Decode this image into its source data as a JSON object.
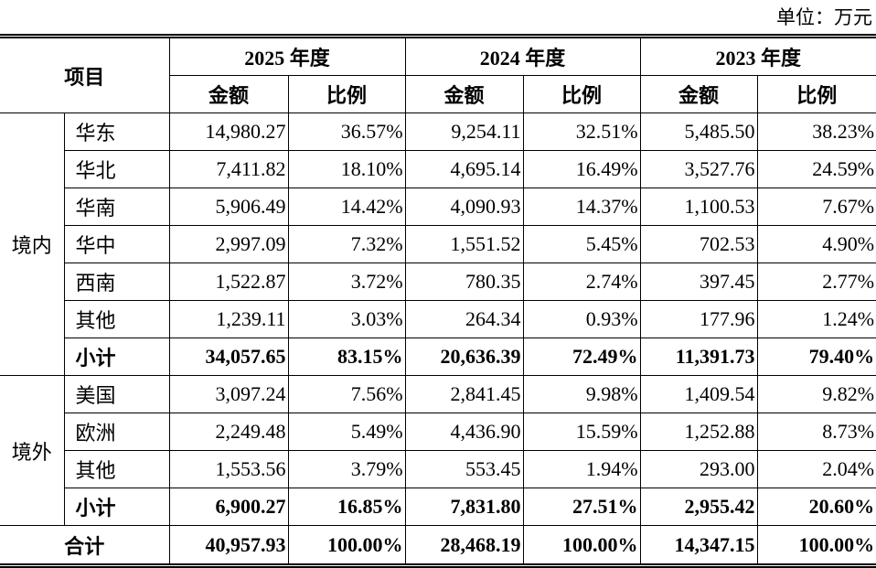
{
  "unit": "单位：万元",
  "table": {
    "item": "项目",
    "years": [
      "2025 年度",
      "2024 年度",
      "2023 年度"
    ],
    "sub": [
      "金额",
      "比例",
      "金额",
      "比例",
      "金额",
      "比例"
    ],
    "groups": [
      {
        "name": "境内",
        "rows": [
          {
            "label": "华东",
            "cells": [
              "14,980.27",
              "36.57%",
              "9,254.11",
              "32.51%",
              "5,485.50",
              "38.23%"
            ]
          },
          {
            "label": "华北",
            "cells": [
              "7,411.82",
              "18.10%",
              "4,695.14",
              "16.49%",
              "3,527.76",
              "24.59%"
            ]
          },
          {
            "label": "华南",
            "cells": [
              "5,906.49",
              "14.42%",
              "4,090.93",
              "14.37%",
              "1,100.53",
              "7.67%"
            ]
          },
          {
            "label": "华中",
            "cells": [
              "2,997.09",
              "7.32%",
              "1,551.52",
              "5.45%",
              "702.53",
              "4.90%"
            ]
          },
          {
            "label": "西南",
            "cells": [
              "1,522.87",
              "3.72%",
              "780.35",
              "2.74%",
              "397.45",
              "2.77%"
            ]
          },
          {
            "label": "其他",
            "cells": [
              "1,239.11",
              "3.03%",
              "264.34",
              "0.93%",
              "177.96",
              "1.24%"
            ]
          }
        ],
        "subtotal": {
          "label": "小计",
          "cells": [
            "34,057.65",
            "83.15%",
            "20,636.39",
            "72.49%",
            "11,391.73",
            "79.40%"
          ]
        }
      },
      {
        "name": "境外",
        "rows": [
          {
            "label": "美国",
            "cells": [
              "3,097.24",
              "7.56%",
              "2,841.45",
              "9.98%",
              "1,409.54",
              "9.82%"
            ]
          },
          {
            "label": "欧洲",
            "cells": [
              "2,249.48",
              "5.49%",
              "4,436.90",
              "15.59%",
              "1,252.88",
              "8.73%"
            ]
          },
          {
            "label": "其他",
            "cells": [
              "1,553.56",
              "3.79%",
              "553.45",
              "1.94%",
              "293.00",
              "2.04%"
            ]
          }
        ],
        "subtotal": {
          "label": "小计",
          "cells": [
            "6,900.27",
            "16.85%",
            "7,831.80",
            "27.51%",
            "2,955.42",
            "20.60%"
          ]
        }
      }
    ],
    "total": {
      "label": "合计",
      "cells": [
        "40,957.93",
        "100.00%",
        "28,468.19",
        "100.00%",
        "14,347.15",
        "100.00%"
      ]
    }
  }
}
